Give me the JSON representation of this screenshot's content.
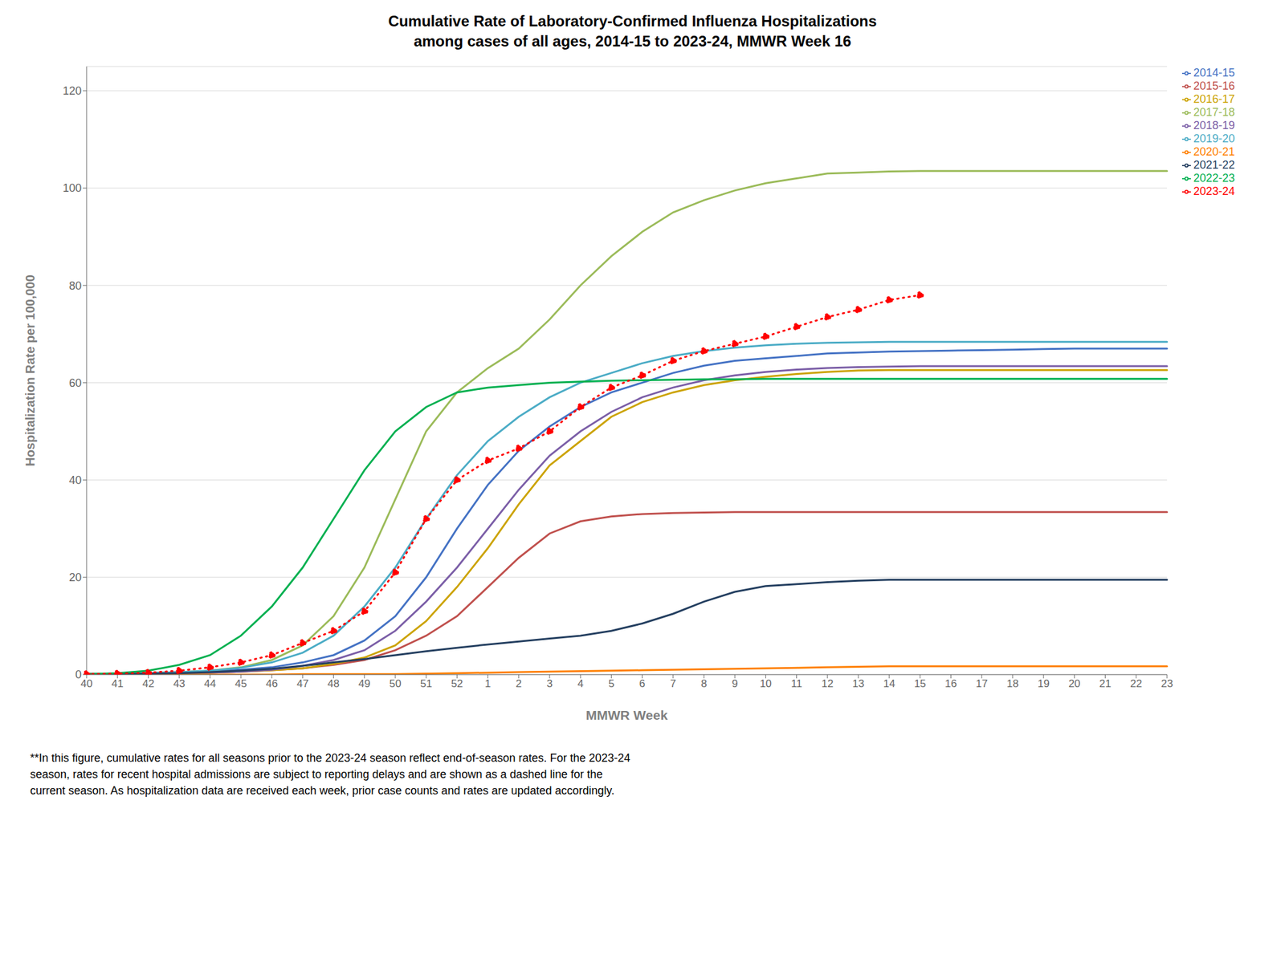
{
  "chart_data": {
    "type": "line",
    "title": "Cumulative Rate of Laboratory-Confirmed Influenza Hospitalizations\namong cases of all ages, 2014-15 to 2023-24, MMWR Week 16",
    "x_label": "MMWR Week",
    "y_label": "Hospitalization Rate per 100,000",
    "annotations": [
      "**In this figure, cumulative rates for all seasons prior to the 2023-24 season reflect end-of-season rates. For the 2023-24\nseason, rates for recent hospital admissions are subject to reporting delays and are shown as a dashed line for the\ncurrent season. As hospitalization data are received each week, prior case counts and rates are updated accordingly."
    ],
    "categories": [
      "40",
      "41",
      "42",
      "43",
      "44",
      "45",
      "46",
      "47",
      "48",
      "49",
      "50",
      "51",
      "52",
      "1",
      "2",
      "3",
      "4",
      "5",
      "6",
      "7",
      "8",
      "9",
      "10",
      "11",
      "12",
      "13",
      "14",
      "15",
      "16",
      "17",
      "18",
      "19",
      "20",
      "21",
      "22",
      "23"
    ],
    "ylim": [
      0,
      125
    ],
    "yticks": [
      0,
      20,
      40,
      60,
      80,
      100,
      120
    ],
    "grid": true,
    "legend": "right",
    "series": [
      {
        "name": "2014-15",
        "color": "#4472C4",
        "values": [
          0.1,
          0.2,
          0.3,
          0.5,
          0.7,
          1.0,
          1.5,
          2.5,
          4.0,
          7.0,
          12.0,
          20.0,
          30.0,
          39.0,
          46.0,
          51.0,
          55.0,
          58.0,
          60.0,
          62.0,
          63.5,
          64.5,
          65.0,
          65.5,
          66.0,
          66.2,
          66.4,
          66.5,
          66.6,
          66.7,
          66.8,
          66.9,
          67.0,
          67.0,
          67.0,
          67.0
        ]
      },
      {
        "name": "2015-16",
        "color": "#C0504D",
        "values": [
          0.1,
          0.1,
          0.2,
          0.3,
          0.4,
          0.6,
          0.9,
          1.3,
          2.0,
          3.0,
          5.0,
          8.0,
          12.0,
          18.0,
          24.0,
          29.0,
          31.5,
          32.5,
          33.0,
          33.2,
          33.3,
          33.4,
          33.4,
          33.4,
          33.4,
          33.4,
          33.4,
          33.4,
          33.4,
          33.4,
          33.4,
          33.4,
          33.4,
          33.4,
          33.4,
          33.4
        ]
      },
      {
        "name": "2016-17",
        "color": "#CCA300",
        "values": [
          0.1,
          0.1,
          0.2,
          0.3,
          0.4,
          0.6,
          0.9,
          1.3,
          2.2,
          3.5,
          6.0,
          11.0,
          18.0,
          26.0,
          35.0,
          43.0,
          48.0,
          53.0,
          56.0,
          58.0,
          59.5,
          60.5,
          61.2,
          61.8,
          62.2,
          62.5,
          62.6,
          62.6,
          62.6,
          62.6,
          62.6,
          62.6,
          62.6,
          62.6,
          62.6,
          62.6
        ]
      },
      {
        "name": "2017-18",
        "color": "#9BBB59",
        "values": [
          0.1,
          0.2,
          0.3,
          0.5,
          0.8,
          1.5,
          3.0,
          6.0,
          12.0,
          22.0,
          36.0,
          50.0,
          58.0,
          63.0,
          67.0,
          73.0,
          80.0,
          86.0,
          91.0,
          95.0,
          97.5,
          99.5,
          101.0,
          102.0,
          103.0,
          103.2,
          103.4,
          103.5,
          103.5,
          103.5,
          103.5,
          103.5,
          103.5,
          103.5,
          103.5,
          103.5
        ]
      },
      {
        "name": "2018-19",
        "color": "#7B5EA7",
        "values": [
          0.1,
          0.1,
          0.2,
          0.3,
          0.4,
          0.6,
          1.0,
          1.8,
          3.0,
          5.0,
          9.0,
          15.0,
          22.0,
          30.0,
          38.0,
          45.0,
          50.0,
          54.0,
          57.0,
          59.0,
          60.5,
          61.5,
          62.2,
          62.7,
          63.0,
          63.2,
          63.3,
          63.4,
          63.4,
          63.4,
          63.4,
          63.4,
          63.4,
          63.4,
          63.4,
          63.4
        ]
      },
      {
        "name": "2019-20",
        "color": "#4BACC6",
        "values": [
          0.1,
          0.2,
          0.3,
          0.5,
          0.8,
          1.4,
          2.5,
          4.5,
          8.0,
          14.0,
          22.0,
          32.0,
          41.0,
          48.0,
          53.0,
          57.0,
          60.0,
          62.0,
          64.0,
          65.5,
          66.5,
          67.2,
          67.7,
          68.0,
          68.2,
          68.3,
          68.4,
          68.4,
          68.4,
          68.4,
          68.4,
          68.4,
          68.4,
          68.4,
          68.4,
          68.4
        ]
      },
      {
        "name": "2020-21",
        "color": "#FF8000",
        "values": [
          0.0,
          0.0,
          0.0,
          0.0,
          0.0,
          0.0,
          0.0,
          0.1,
          0.1,
          0.1,
          0.1,
          0.2,
          0.3,
          0.4,
          0.5,
          0.6,
          0.7,
          0.8,
          0.9,
          1.0,
          1.1,
          1.2,
          1.3,
          1.4,
          1.5,
          1.6,
          1.7,
          1.7,
          1.7,
          1.7,
          1.7,
          1.7,
          1.7,
          1.7,
          1.7,
          1.7
        ]
      },
      {
        "name": "2021-22",
        "color": "#243F60",
        "values": [
          0.1,
          0.1,
          0.2,
          0.3,
          0.5,
          0.8,
          1.2,
          1.8,
          2.5,
          3.2,
          4.0,
          4.8,
          5.5,
          6.2,
          6.8,
          7.4,
          8.0,
          9.0,
          10.5,
          12.5,
          15.0,
          17.0,
          18.2,
          18.6,
          19.0,
          19.3,
          19.5,
          19.5,
          19.5,
          19.5,
          19.5,
          19.5,
          19.5,
          19.5,
          19.5,
          19.5
        ]
      },
      {
        "name": "2022-23",
        "color": "#00B050",
        "values": [
          0.1,
          0.3,
          0.8,
          2.0,
          4.0,
          8.0,
          14.0,
          22.0,
          32.0,
          42.0,
          50.0,
          55.0,
          58.0,
          59.0,
          59.5,
          60.0,
          60.2,
          60.4,
          60.5,
          60.6,
          60.7,
          60.7,
          60.8,
          60.8,
          60.8,
          60.8,
          60.8,
          60.8,
          60.8,
          60.8,
          60.8,
          60.8,
          60.8,
          60.8,
          60.8,
          60.8
        ]
      },
      {
        "name": "2023-24",
        "color": "#FF0000",
        "line_style": "dotted",
        "marker": "o",
        "values": [
          0.1,
          0.2,
          0.4,
          0.8,
          1.5,
          2.5,
          4.0,
          6.5,
          9.0,
          13.0,
          21.0,
          32.0,
          40.0,
          44.0,
          46.5,
          50.0,
          55.0,
          59.0,
          61.5,
          64.5,
          66.5,
          68.0,
          69.5,
          71.5,
          73.5,
          75.0,
          77.0,
          78.0,
          null,
          null,
          null,
          null,
          null,
          null,
          null,
          null
        ]
      }
    ]
  }
}
